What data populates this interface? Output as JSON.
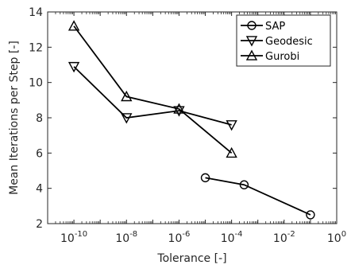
{
  "chart_data": {
    "type": "line",
    "xlabel": "Tolerance [-]",
    "ylabel": "Mean Iterations per Step [-]",
    "xscale": "log",
    "xlim": [
      1e-11,
      1
    ],
    "ylim": [
      2,
      14
    ],
    "xticks": [
      {
        "value": 1e-10,
        "base": "10",
        "exp": "-10"
      },
      {
        "value": 1e-08,
        "base": "10",
        "exp": "-8"
      },
      {
        "value": 1e-06,
        "base": "10",
        "exp": "-6"
      },
      {
        "value": 0.0001,
        "base": "10",
        "exp": "-4"
      },
      {
        "value": 0.01,
        "base": "10",
        "exp": "-2"
      },
      {
        "value": 1,
        "base": "10",
        "exp": "0"
      }
    ],
    "yticks": [
      2,
      4,
      6,
      8,
      10,
      12,
      14
    ],
    "grid": false,
    "legend_position": "top-right",
    "series": [
      {
        "name": "SAP",
        "marker": "circle",
        "color": "#000000",
        "x": [
          1e-05,
          0.0003,
          0.1
        ],
        "y": [
          4.6,
          4.2,
          2.5
        ]
      },
      {
        "name": "Geodesic",
        "marker": "triangle-down",
        "color": "#000000",
        "x": [
          1e-10,
          1e-08,
          1e-06,
          0.0001
        ],
        "y": [
          10.9,
          8.0,
          8.4,
          7.6
        ]
      },
      {
        "name": "Gurobi",
        "marker": "triangle-up",
        "color": "#000000",
        "x": [
          1e-10,
          1e-08,
          1e-06,
          0.0001
        ],
        "y": [
          13.2,
          9.2,
          8.5,
          6.0
        ]
      }
    ]
  }
}
